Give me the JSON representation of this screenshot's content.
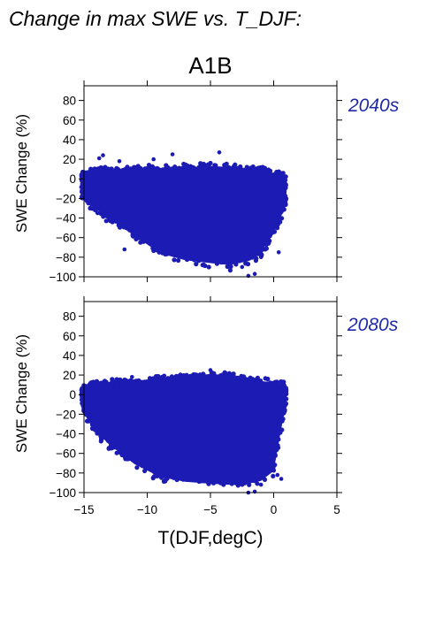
{
  "figure": {
    "title": "Change in max SWE vs. T_DJF:",
    "scenario": "A1B",
    "x_label": "T(DJF,degC)",
    "point_color": "#1c1cb4",
    "period_label_color": "#1f2aa8"
  },
  "chart_data": [
    {
      "type": "scatter",
      "period": "2040s",
      "ylabel": "SWE Change (%)",
      "xlim": [
        -15,
        5
      ],
      "ylim": [
        -100,
        95
      ],
      "x_ticks": [
        -15,
        -10,
        -5,
        0,
        5
      ],
      "y_ticks": [
        -100,
        -80,
        -60,
        -40,
        -20,
        0,
        20,
        40,
        60,
        80
      ],
      "grid": false,
      "envelope": {
        "x": [
          -15.2,
          -14.5,
          -13.0,
          -11.0,
          -9.0,
          -7.0,
          -5.0,
          -3.5,
          -2.0,
          -1.0,
          0.0,
          1.0
        ],
        "upper": [
          6,
          10,
          11,
          12,
          13,
          14,
          15,
          14,
          13,
          12,
          8,
          6
        ],
        "lower": [
          -20,
          -30,
          -45,
          -62,
          -80,
          -87,
          -90,
          -92,
          -88,
          -78,
          -60,
          -30
        ]
      },
      "outliers": [
        {
          "x": -13.5,
          "y": 24
        },
        {
          "x": -13.8,
          "y": 21
        },
        {
          "x": -12.2,
          "y": 18
        },
        {
          "x": -8.0,
          "y": 25
        },
        {
          "x": -9.5,
          "y": 20
        },
        {
          "x": -4.3,
          "y": 27
        },
        {
          "x": -2.0,
          "y": -99
        },
        {
          "x": -1.5,
          "y": -97
        },
        {
          "x": -1.0,
          "y": -80
        },
        {
          "x": -11.8,
          "y": -72
        },
        {
          "x": 0.4,
          "y": -75
        },
        {
          "x": -2.5,
          "y": -90
        }
      ]
    },
    {
      "type": "scatter",
      "period": "2080s",
      "ylabel": "SWE Change (%)",
      "xlim": [
        -15,
        5
      ],
      "ylim": [
        -100,
        95
      ],
      "x_ticks": [
        -15,
        -10,
        -5,
        0,
        5
      ],
      "y_ticks": [
        -100,
        -80,
        -60,
        -40,
        -20,
        0,
        20,
        40,
        60,
        80
      ],
      "grid": false,
      "envelope": {
        "x": [
          -15.2,
          -14.5,
          -13.0,
          -11.0,
          -9.0,
          -7.0,
          -5.0,
          -3.5,
          -2.0,
          -1.0,
          0.0,
          1.0
        ],
        "upper": [
          6,
          12,
          14,
          16,
          19,
          21,
          23,
          22,
          18,
          16,
          14,
          12
        ],
        "lower": [
          -10,
          -35,
          -55,
          -75,
          -88,
          -93,
          -95,
          -96,
          -95,
          -92,
          -82,
          -10
        ]
      },
      "outliers": [
        {
          "x": -11.2,
          "y": 18
        },
        {
          "x": -5.0,
          "y": 25
        },
        {
          "x": -3.5,
          "y": 22
        },
        {
          "x": -1.5,
          "y": -99
        },
        {
          "x": -2.0,
          "y": -100
        },
        {
          "x": 0.3,
          "y": -82
        },
        {
          "x": 0.6,
          "y": -86
        },
        {
          "x": -1.0,
          "y": -92
        }
      ]
    }
  ]
}
